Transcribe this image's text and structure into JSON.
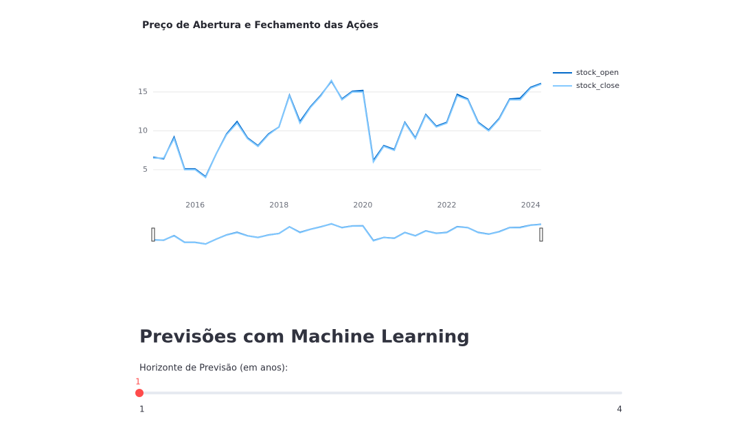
{
  "chart_data": {
    "type": "line",
    "title": "Preço de Abertura e Fechamento das Ações",
    "x": [
      2015.0,
      2015.25,
      2015.5,
      2015.75,
      2016.0,
      2016.25,
      2016.5,
      2016.75,
      2017.0,
      2017.25,
      2017.5,
      2017.75,
      2018.0,
      2018.25,
      2018.5,
      2018.75,
      2019.0,
      2019.25,
      2019.5,
      2019.75,
      2020.0,
      2020.25,
      2020.5,
      2020.75,
      2021.0,
      2021.25,
      2021.5,
      2021.75,
      2022.0,
      2022.25,
      2022.5,
      2022.75,
      2023.0,
      2023.25,
      2023.5,
      2023.75,
      2024.0,
      2024.25
    ],
    "series": [
      {
        "name": "stock_open",
        "color": "#0068c9",
        "values": [
          6.6,
          6.4,
          9.2,
          5.1,
          5.1,
          4.1,
          7.0,
          9.6,
          11.2,
          9.1,
          8.1,
          9.6,
          10.5,
          14.6,
          11.2,
          13.1,
          14.6,
          16.4,
          14.1,
          15.1,
          15.2,
          6.2,
          8.1,
          7.6,
          11.1,
          9.1,
          12.1,
          10.6,
          11.1,
          14.7,
          14.1,
          11.1,
          10.1,
          11.6,
          14.1,
          14.2,
          15.6,
          16.1
        ]
      },
      {
        "name": "stock_close",
        "color": "#83c9ff",
        "values": [
          6.5,
          6.5,
          9.0,
          5.0,
          5.0,
          4.0,
          7.0,
          9.5,
          11.0,
          9.0,
          8.0,
          9.5,
          10.5,
          14.5,
          11.0,
          13.0,
          14.5,
          16.5,
          14.0,
          15.0,
          15.0,
          6.0,
          8.0,
          7.5,
          11.0,
          9.0,
          12.0,
          10.5,
          11.0,
          14.5,
          14.0,
          11.0,
          10.0,
          11.5,
          14.0,
          14.0,
          15.5,
          16.0
        ]
      }
    ],
    "xlim": [
      2015.0,
      2024.25
    ],
    "xticks": [
      2016,
      2018,
      2020,
      2022,
      2024
    ],
    "ylim": [
      1.2,
      18
    ],
    "yticks": [
      5,
      10,
      15
    ],
    "grid": true,
    "legend": "right",
    "range_slider": true
  },
  "section": {
    "heading": "Previsões com Machine Learning",
    "slider": {
      "label": "Horizonte de Previsão (em anos):",
      "value": 1,
      "min": 1,
      "max": 4
    }
  }
}
